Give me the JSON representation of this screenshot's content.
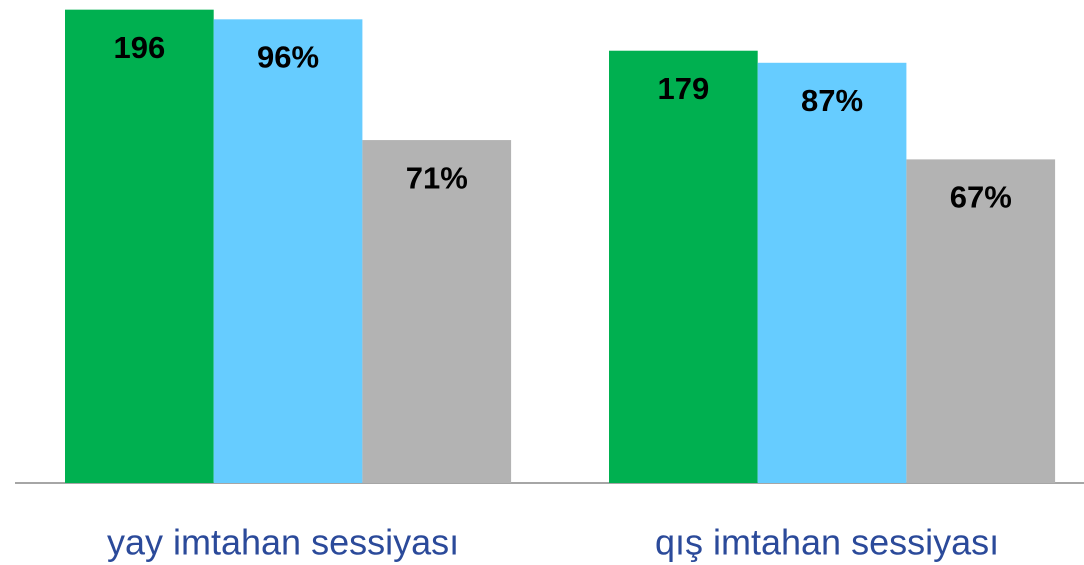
{
  "chart_data": {
    "type": "bar",
    "categories": [
      "yay imtahan sessiyası",
      "qış imtahan sessiyası"
    ],
    "series": [
      {
        "color": "#00b050",
        "values": [
          196,
          179
        ]
      },
      {
        "color": "#66ccff",
        "values": [
          96,
          87
        ],
        "value_labels": [
          "96%",
          "87%"
        ],
        "axis": "y2"
      },
      {
        "color": "#b3b3b3",
        "values": [
          71,
          67
        ],
        "value_labels": [
          "71%",
          "67%"
        ],
        "axis": "y2"
      }
    ],
    "ylim": [
      0,
      200
    ],
    "y2lim": [
      0,
      100
    ]
  }
}
